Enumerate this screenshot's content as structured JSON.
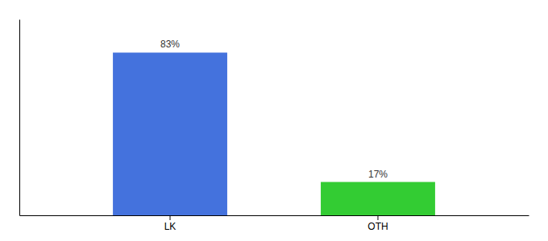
{
  "chart_data": {
    "type": "bar",
    "categories": [
      "LK",
      "OTH"
    ],
    "values": [
      83,
      17
    ],
    "colors": [
      "#4472DD",
      "#33CC33"
    ],
    "data_labels": true,
    "value_labels": [
      "83%",
      "17%"
    ],
    "ylim": [
      0,
      100
    ],
    "tick_labels": "x"
  }
}
